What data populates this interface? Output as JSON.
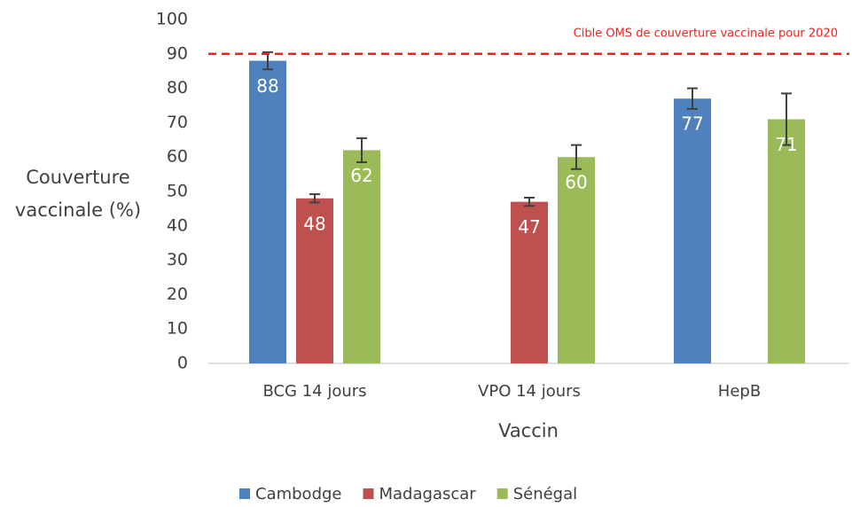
{
  "chart_data": {
    "type": "bar",
    "categories": [
      "BCG 14 jours",
      "VPO 14 jours",
      "HepB"
    ],
    "series": [
      {
        "name": "Cambodge",
        "color": "#4f81bd",
        "values": [
          88,
          null,
          77
        ],
        "errors": [
          2.5,
          null,
          3
        ]
      },
      {
        "name": "Madagascar",
        "color": "#c0504d",
        "values": [
          48,
          47,
          null
        ],
        "errors": [
          1.2,
          1.2,
          null
        ]
      },
      {
        "name": "Sénégal",
        "color": "#9bbb59",
        "values": [
          62,
          60,
          71
        ],
        "errors": [
          3.5,
          3.5,
          7.5
        ]
      }
    ],
    "ylim": [
      0,
      100
    ],
    "yticks": [
      0,
      10,
      20,
      30,
      40,
      50,
      60,
      70,
      80,
      90,
      100
    ],
    "ylabel": [
      "Couverture",
      "vaccinale (%)"
    ],
    "xlabel": "Vaccin",
    "reference_line": {
      "value": 90,
      "label": "Cible OMS de couverture vaccinale pour 2020",
      "color": "#e8231f"
    },
    "grid": false,
    "legend": "bottom"
  }
}
